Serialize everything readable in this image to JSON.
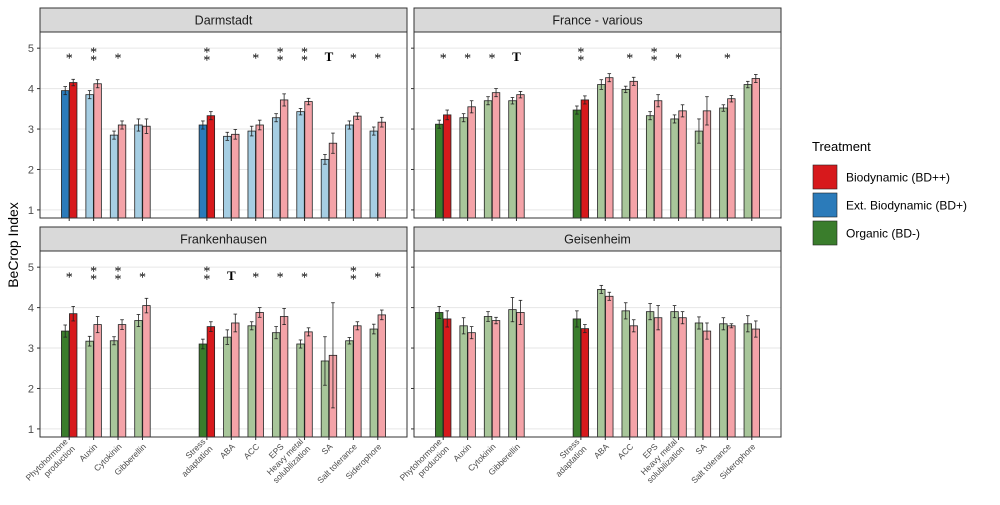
{
  "chart_data": {
    "type": "bar",
    "ylabel": "BeCrop Index",
    "ylim": [
      0.8,
      5.4
    ],
    "yticks": [
      1,
      2,
      3,
      4,
      5
    ],
    "grid": true,
    "legend": {
      "title": "Treatment",
      "placement": "right",
      "entries": [
        {
          "label": "Biodynamic (BD++)",
          "color": "#d7191c"
        },
        {
          "label": "Ext. Biodynamic (BD+)",
          "color": "#2b7bba"
        },
        {
          "label": "Organic (BD-)",
          "color": "#3a7d2c"
        }
      ]
    },
    "categories": [
      {
        "label": "Phytohormone production",
        "lines": [
          "Phytohormone",
          "production"
        ]
      },
      {
        "label": "Auxin",
        "lines": [
          "Auxin"
        ]
      },
      {
        "label": "Cytokinin",
        "lines": [
          "Cytokinin"
        ]
      },
      {
        "label": "Gibberellin",
        "lines": [
          "Gibberellin"
        ]
      },
      {
        "label": "Stress adaptation",
        "lines": [
          "Stress",
          "adaptation"
        ]
      },
      {
        "label": "ABA",
        "lines": [
          "ABA"
        ]
      },
      {
        "label": "ACC",
        "lines": [
          "ACC"
        ]
      },
      {
        "label": "EPS",
        "lines": [
          "EPS"
        ]
      },
      {
        "label": "Heavy metal solubilization",
        "lines": [
          "Heavy metal",
          "solubilization"
        ]
      },
      {
        "label": "SA",
        "lines": [
          "SA"
        ]
      },
      {
        "label": "Salt tolerance",
        "lines": [
          "Salt tolerance"
        ]
      },
      {
        "label": "Siderophore",
        "lines": [
          "Siderophore"
        ]
      }
    ],
    "colors": {
      "BD++": {
        "summary": "#d7191c",
        "sub": "#f4a3a8"
      },
      "BD+": {
        "summary": "#2b7bba",
        "sub": "#a6cee3"
      },
      "BD-": {
        "summary": "#3a7d2c",
        "sub": "#a8c69a"
      }
    },
    "panels": [
      {
        "title": "Darmstadt",
        "control": "BD+",
        "values": [
          [
            3.95,
            4.15
          ],
          [
            3.85,
            4.12
          ],
          [
            2.85,
            3.1
          ],
          [
            3.1,
            3.07
          ],
          [
            3.1,
            3.33
          ],
          [
            2.82,
            2.87
          ],
          [
            2.95,
            3.1
          ],
          [
            3.28,
            3.72
          ],
          [
            3.43,
            3.68
          ],
          [
            2.25,
            2.65
          ],
          [
            3.1,
            3.32
          ],
          [
            2.95,
            3.17
          ]
        ],
        "errors": [
          [
            0.1,
            0.08
          ],
          [
            0.1,
            0.1
          ],
          [
            0.1,
            0.1
          ],
          [
            0.15,
            0.18
          ],
          [
            0.1,
            0.1
          ],
          [
            0.1,
            0.12
          ],
          [
            0.12,
            0.12
          ],
          [
            0.1,
            0.15
          ],
          [
            0.08,
            0.08
          ],
          [
            0.12,
            0.25
          ],
          [
            0.1,
            0.08
          ],
          [
            0.1,
            0.12
          ]
        ],
        "sig": [
          "*",
          "**",
          "*",
          "",
          "**",
          "",
          "*",
          "**",
          "**",
          "T",
          "*",
          "*"
        ]
      },
      {
        "title": "France - various",
        "control": "BD-",
        "values": [
          [
            3.12,
            3.35
          ],
          [
            3.28,
            3.55
          ],
          [
            3.7,
            3.9
          ],
          [
            3.7,
            3.85
          ],
          [
            3.47,
            3.72
          ],
          [
            4.1,
            4.27
          ],
          [
            3.98,
            4.18
          ],
          [
            3.33,
            3.7
          ],
          [
            3.25,
            3.45
          ],
          [
            2.95,
            3.45
          ],
          [
            3.52,
            3.75
          ],
          [
            4.1,
            4.25
          ]
        ],
        "errors": [
          [
            0.1,
            0.12
          ],
          [
            0.1,
            0.15
          ],
          [
            0.1,
            0.1
          ],
          [
            0.08,
            0.08
          ],
          [
            0.1,
            0.1
          ],
          [
            0.12,
            0.1
          ],
          [
            0.08,
            0.1
          ],
          [
            0.1,
            0.15
          ],
          [
            0.1,
            0.15
          ],
          [
            0.3,
            0.35
          ],
          [
            0.08,
            0.08
          ],
          [
            0.08,
            0.1
          ]
        ],
        "sig": [
          "*",
          "*",
          "*",
          "T",
          "**",
          "",
          "*",
          "**",
          "*",
          "",
          "*",
          ""
        ]
      },
      {
        "title": "Frankenhausen",
        "control": "BD-",
        "values": [
          [
            3.42,
            3.85
          ],
          [
            3.17,
            3.58
          ],
          [
            3.18,
            3.58
          ],
          [
            3.68,
            4.05
          ],
          [
            3.1,
            3.53
          ],
          [
            3.27,
            3.62
          ],
          [
            3.55,
            3.88
          ],
          [
            3.38,
            3.78
          ],
          [
            3.1,
            3.4
          ],
          [
            2.68,
            2.82
          ],
          [
            3.18,
            3.55
          ],
          [
            3.47,
            3.82
          ]
        ],
        "errors": [
          [
            0.15,
            0.18
          ],
          [
            0.12,
            0.2
          ],
          [
            0.1,
            0.12
          ],
          [
            0.15,
            0.18
          ],
          [
            0.12,
            0.12
          ],
          [
            0.18,
            0.22
          ],
          [
            0.1,
            0.12
          ],
          [
            0.15,
            0.2
          ],
          [
            0.1,
            0.1
          ],
          [
            0.6,
            1.3
          ],
          [
            0.08,
            0.1
          ],
          [
            0.12,
            0.12
          ]
        ],
        "sig": [
          "*",
          "**",
          "**",
          "*",
          "**",
          "T",
          "*",
          "*",
          "*",
          "",
          "**",
          "*"
        ]
      },
      {
        "title": "Geisenheim",
        "control": "BD-",
        "values": [
          [
            3.88,
            3.72
          ],
          [
            3.55,
            3.38
          ],
          [
            3.78,
            3.68
          ],
          [
            3.95,
            3.88
          ],
          [
            3.72,
            3.48
          ],
          [
            4.45,
            4.28
          ],
          [
            3.92,
            3.55
          ],
          [
            3.9,
            3.75
          ],
          [
            3.9,
            3.75
          ],
          [
            3.62,
            3.42
          ],
          [
            3.6,
            3.55
          ],
          [
            3.6,
            3.47
          ]
        ],
        "errors": [
          [
            0.15,
            0.2
          ],
          [
            0.2,
            0.15
          ],
          [
            0.12,
            0.08
          ],
          [
            0.3,
            0.3
          ],
          [
            0.2,
            0.1
          ],
          [
            0.1,
            0.1
          ],
          [
            0.2,
            0.15
          ],
          [
            0.2,
            0.3
          ],
          [
            0.15,
            0.15
          ],
          [
            0.15,
            0.2
          ],
          [
            0.15,
            0.05
          ],
          [
            0.2,
            0.2
          ]
        ],
        "sig": [
          "",
          "",
          "",
          "",
          "",
          "",
          "",
          "",
          "",
          "",
          "",
          ""
        ]
      }
    ]
  }
}
